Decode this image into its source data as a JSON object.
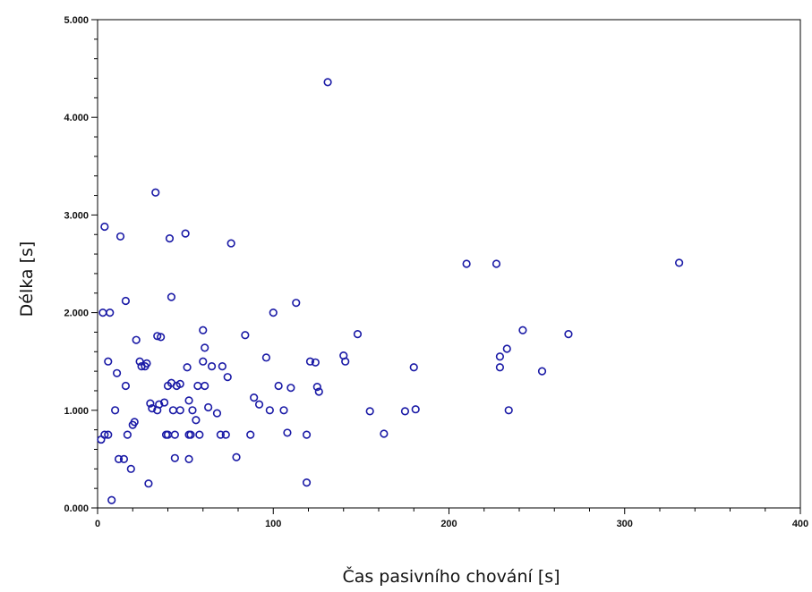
{
  "chart_data": {
    "type": "scatter",
    "title": "",
    "xlabel": "Čas pasivního chování [s]",
    "ylabel": "Délka [s]",
    "xlim": [
      0,
      400
    ],
    "ylim": [
      0,
      5
    ],
    "x_ticks": [
      0,
      100,
      200,
      300,
      400
    ],
    "x_tick_labels": [
      "0",
      "100",
      "200",
      "300",
      "400"
    ],
    "y_ticks": [
      0,
      1,
      2,
      3,
      4,
      5
    ],
    "y_tick_labels": [
      "0.000",
      "1.000",
      "2.000",
      "3.000",
      "4.000",
      "5.000"
    ],
    "grid": false,
    "legend": "none",
    "marker_color": "#1a1aa6",
    "series": [
      {
        "points": [
          [
            2,
            0.7
          ],
          [
            3,
            2.0
          ],
          [
            4,
            0.75
          ],
          [
            4,
            2.88
          ],
          [
            6,
            1.5
          ],
          [
            6,
            0.75
          ],
          [
            7,
            2.0
          ],
          [
            8,
            0.08
          ],
          [
            10,
            1.0
          ],
          [
            11,
            1.38
          ],
          [
            12,
            0.5
          ],
          [
            13,
            2.78
          ],
          [
            15,
            0.5
          ],
          [
            16,
            1.25
          ],
          [
            16,
            2.12
          ],
          [
            17,
            0.75
          ],
          [
            19,
            0.4
          ],
          [
            20,
            0.85
          ],
          [
            21,
            0.88
          ],
          [
            22,
            1.72
          ],
          [
            24,
            1.5
          ],
          [
            25,
            1.45
          ],
          [
            27,
            1.45
          ],
          [
            28,
            1.48
          ],
          [
            29,
            0.25
          ],
          [
            30,
            1.07
          ],
          [
            31,
            1.02
          ],
          [
            33,
            3.23
          ],
          [
            34,
            1.0
          ],
          [
            34,
            1.76
          ],
          [
            35,
            1.06
          ],
          [
            36,
            1.75
          ],
          [
            38,
            1.08
          ],
          [
            39,
            0.75
          ],
          [
            40,
            1.25
          ],
          [
            40,
            0.75
          ],
          [
            41,
            2.76
          ],
          [
            42,
            1.28
          ],
          [
            42,
            2.16
          ],
          [
            43,
            1.0
          ],
          [
            44,
            0.51
          ],
          [
            44,
            0.75
          ],
          [
            45,
            1.25
          ],
          [
            47,
            1.0
          ],
          [
            47,
            1.27
          ],
          [
            50,
            2.81
          ],
          [
            51,
            1.44
          ],
          [
            52,
            1.1
          ],
          [
            52,
            0.75
          ],
          [
            52,
            0.5
          ],
          [
            53,
            0.75
          ],
          [
            54,
            1.0
          ],
          [
            56,
            0.9
          ],
          [
            57,
            1.25
          ],
          [
            58,
            0.75
          ],
          [
            60,
            1.5
          ],
          [
            60,
            1.82
          ],
          [
            61,
            1.25
          ],
          [
            61,
            1.64
          ],
          [
            63,
            1.03
          ],
          [
            65,
            1.45
          ],
          [
            68,
            0.97
          ],
          [
            70,
            0.75
          ],
          [
            71,
            1.45
          ],
          [
            73,
            0.75
          ],
          [
            74,
            1.34
          ],
          [
            76,
            2.71
          ],
          [
            79,
            0.52
          ],
          [
            84,
            1.77
          ],
          [
            87,
            0.75
          ],
          [
            89,
            1.13
          ],
          [
            92,
            1.06
          ],
          [
            96,
            1.54
          ],
          [
            98,
            1.0
          ],
          [
            100,
            2.0
          ],
          [
            103,
            1.25
          ],
          [
            106,
            1.0
          ],
          [
            108,
            0.77
          ],
          [
            110,
            1.23
          ],
          [
            113,
            2.1
          ],
          [
            119,
            0.75
          ],
          [
            119,
            0.26
          ],
          [
            121,
            1.5
          ],
          [
            124,
            1.49
          ],
          [
            125,
            1.24
          ],
          [
            126,
            1.19
          ],
          [
            131,
            4.36
          ],
          [
            140,
            1.56
          ],
          [
            141,
            1.5
          ],
          [
            148,
            1.78
          ],
          [
            155,
            0.99
          ],
          [
            163,
            0.76
          ],
          [
            175,
            0.99
          ],
          [
            180,
            1.44
          ],
          [
            181,
            1.01
          ],
          [
            210,
            2.5
          ],
          [
            227,
            2.5
          ],
          [
            229,
            1.55
          ],
          [
            229,
            1.44
          ],
          [
            233,
            1.63
          ],
          [
            234,
            1.0
          ],
          [
            242,
            1.82
          ],
          [
            253,
            1.4
          ],
          [
            268,
            1.78
          ],
          [
            331,
            2.51
          ]
        ]
      }
    ]
  }
}
